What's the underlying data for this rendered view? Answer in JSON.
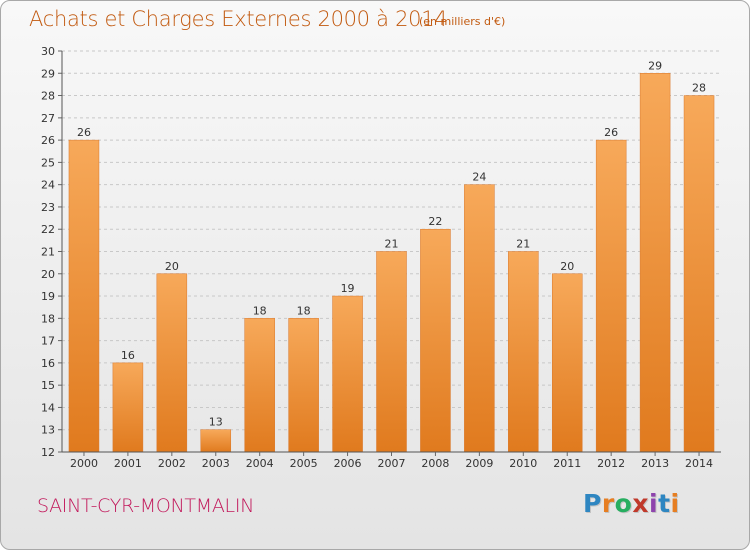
{
  "header": {
    "title": "Achats et Charges Externes 2000 à 2014",
    "unit_note": "(en milliers d'€)"
  },
  "footer": {
    "commune": "SAINT-CYR-MONTMALIN",
    "logo_letters": [
      "P",
      "r",
      "o",
      "x",
      "i",
      "t",
      "i"
    ],
    "logo_colors": [
      "#2e86c1",
      "#e67e22",
      "#27ae60",
      "#c0392b",
      "#8e44ad",
      "#2e86c1",
      "#e67e22"
    ]
  },
  "colors": {
    "bar_top": "#f7a95a",
    "bar_bottom": "#e07a1e",
    "title": "#c25a10",
    "commune": "#c2185b"
  },
  "chart_data": {
    "type": "bar",
    "categories": [
      "2000",
      "2001",
      "2002",
      "2003",
      "2004",
      "2005",
      "2006",
      "2007",
      "2008",
      "2009",
      "2010",
      "2011",
      "2012",
      "2013",
      "2014"
    ],
    "values": [
      26,
      16,
      20,
      13,
      18,
      18,
      19,
      21,
      22,
      24,
      21,
      20,
      26,
      29,
      28
    ],
    "data_labels": [
      "26",
      "16",
      "20",
      "13",
      "18",
      "18",
      "19",
      "21",
      "22",
      "24",
      "21",
      "20",
      "26",
      "29",
      "28"
    ],
    "ylim": [
      12,
      30
    ],
    "yticks": [
      12,
      13,
      14,
      15,
      16,
      17,
      18,
      19,
      20,
      21,
      22,
      23,
      24,
      25,
      26,
      27,
      28,
      29,
      30
    ],
    "grid": "dashed-horizontal",
    "legend": "none"
  }
}
